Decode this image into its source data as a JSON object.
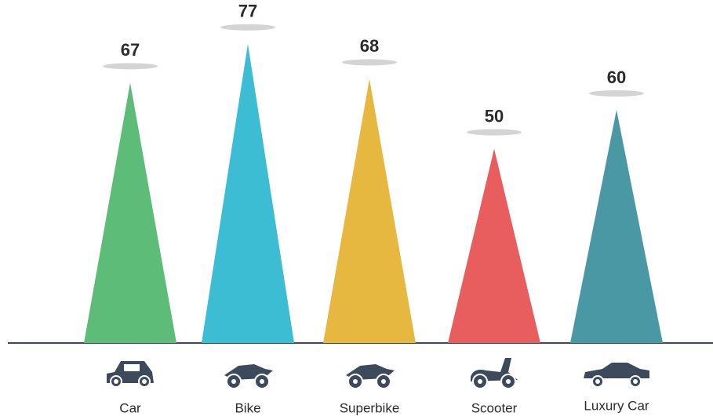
{
  "chart_data": {
    "type": "triangle",
    "categories": [
      "Car",
      "Bike",
      "Superbike",
      "Scooter",
      "Luxury Car"
    ],
    "values": [
      67,
      77,
      68,
      50,
      60
    ],
    "colors": [
      "#5dbd78",
      "#3dbdd3",
      "#e6b83f",
      "#e85e5e",
      "#4a98a3"
    ]
  }
}
